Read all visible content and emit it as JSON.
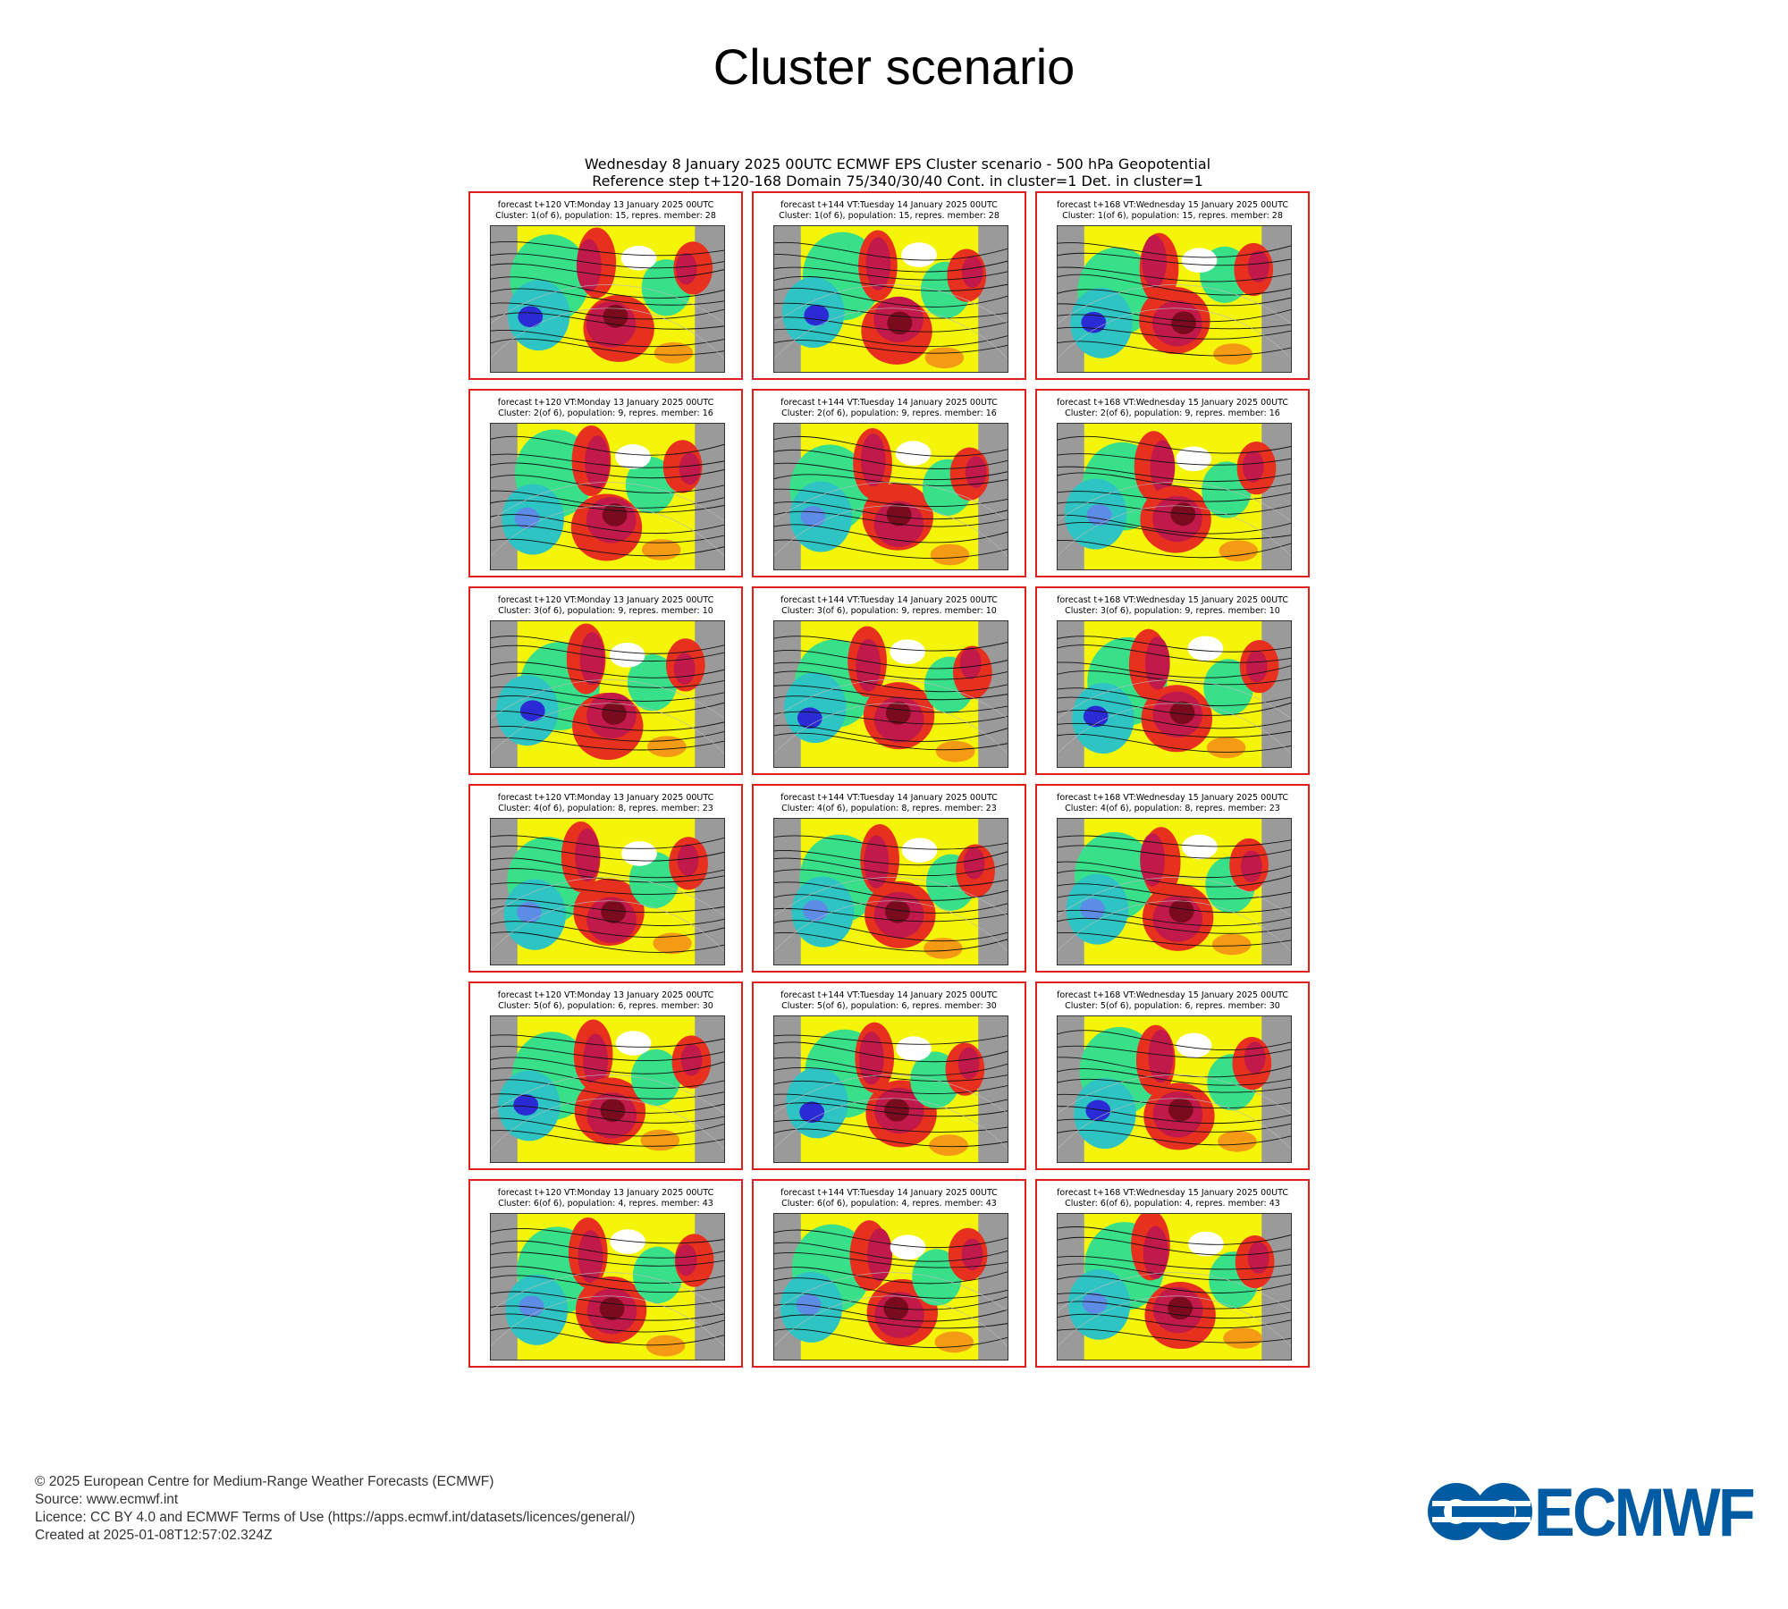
{
  "page_title": "Cluster scenario",
  "figure": {
    "header_line1": "Wednesday 8 January 2025 00UTC ECMWF EPS Cluster scenario - 500 hPa Geopotential",
    "header_line2": "Reference step t+120-168 Domain 75/340/30/40 Cont. in cluster=1 Det. in cluster=1",
    "rows": [
      {
        "panels": [
          {
            "line1": "forecast t+120 VT:Monday 13 January 2025 00UTC",
            "line2": "Cluster: 1(of 6), population: 15, repres. member: 28"
          },
          {
            "line1": "forecast t+144 VT:Tuesday 14 January 2025 00UTC",
            "line2": "Cluster: 1(of 6), population: 15, repres. member: 28"
          },
          {
            "line1": "forecast t+168 VT:Wednesday 15 January 2025 00UTC",
            "line2": "Cluster: 1(of 6), population: 15, repres. member: 28"
          }
        ]
      },
      {
        "panels": [
          {
            "line1": "forecast t+120 VT:Monday 13 January 2025 00UTC",
            "line2": "Cluster: 2(of 6), population: 9, repres. member: 16"
          },
          {
            "line1": "forecast t+144 VT:Tuesday 14 January 2025 00UTC",
            "line2": "Cluster: 2(of 6), population: 9, repres. member: 16"
          },
          {
            "line1": "forecast t+168 VT:Wednesday 15 January 2025 00UTC",
            "line2": "Cluster: 2(of 6), population: 9, repres. member: 16"
          }
        ]
      },
      {
        "panels": [
          {
            "line1": "forecast t+120 VT:Monday 13 January 2025 00UTC",
            "line2": "Cluster: 3(of 6), population: 9, repres. member: 10"
          },
          {
            "line1": "forecast t+144 VT:Tuesday 14 January 2025 00UTC",
            "line2": "Cluster: 3(of 6), population: 9, repres. member: 10"
          },
          {
            "line1": "forecast t+168 VT:Wednesday 15 January 2025 00UTC",
            "line2": "Cluster: 3(of 6), population: 9, repres. member: 10"
          }
        ]
      },
      {
        "panels": [
          {
            "line1": "forecast t+120 VT:Monday 13 January 2025 00UTC",
            "line2": "Cluster: 4(of 6), population: 8, repres. member: 23"
          },
          {
            "line1": "forecast t+144 VT:Tuesday 14 January 2025 00UTC",
            "line2": "Cluster: 4(of 6), population: 8, repres. member: 23"
          },
          {
            "line1": "forecast t+168 VT:Wednesday 15 January 2025 00UTC",
            "line2": "Cluster: 4(of 6), population: 8, repres. member: 23"
          }
        ]
      },
      {
        "panels": [
          {
            "line1": "forecast t+120 VT:Monday 13 January 2025 00UTC",
            "line2": "Cluster: 5(of 6), population: 6, repres. member: 30"
          },
          {
            "line1": "forecast t+144 VT:Tuesday 14 January 2025 00UTC",
            "line2": "Cluster: 5(of 6), population: 6, repres. member: 30"
          },
          {
            "line1": "forecast t+168 VT:Wednesday 15 January 2025 00UTC",
            "line2": "Cluster: 5(of 6), population: 6, repres. member: 30"
          }
        ]
      },
      {
        "panels": [
          {
            "line1": "forecast t+120 VT:Monday 13 January 2025 00UTC",
            "line2": "Cluster: 6(of 6), population: 4, repres. member: 43"
          },
          {
            "line1": "forecast t+144 VT:Tuesday 14 January 2025 00UTC",
            "line2": "Cluster: 6(of 6), population: 4, repres. member: 43"
          },
          {
            "line1": "forecast t+168 VT:Wednesday 15 January 2025 00UTC",
            "line2": "Cluster: 6(of 6), population: 4, repres. member: 43"
          }
        ]
      }
    ],
    "anomaly_colors": [
      "#2b2bd6",
      "#5c8ce6",
      "#2ec4c4",
      "#38e08a",
      "#ffffff",
      "#f5f50a",
      "#f59a14",
      "#e8301e",
      "#c0194a",
      "#7a0a1e"
    ],
    "land_color": "#9a9a9a",
    "panel_border_color": "#e0201e"
  },
  "footer": {
    "copyright": "© 2025 European Centre for Medium-Range Weather Forecasts (ECMWF)",
    "source": "Source: www.ecmwf.int",
    "licence": "Licence: CC BY 4.0 and ECMWF Terms of Use (https://apps.ecmwf.int/datasets/licences/general/)",
    "created": "Created at 2025-01-08T12:57:02.324Z"
  },
  "logo": {
    "text": "ECMWF",
    "color": "#005ba3"
  }
}
